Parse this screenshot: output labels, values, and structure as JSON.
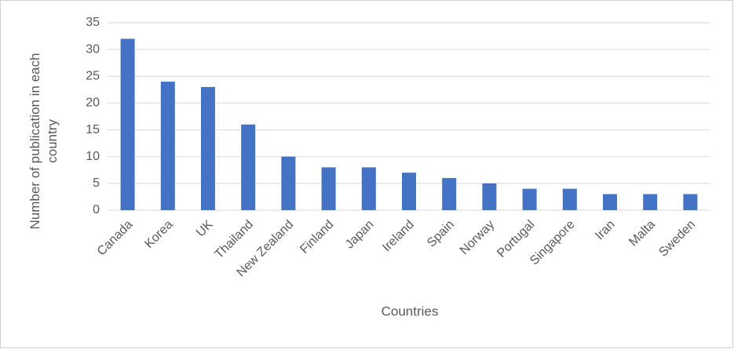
{
  "chart_data": {
    "type": "bar",
    "x_label": "Countries",
    "y_label": "Number of publication in each country",
    "categories": [
      "Canada",
      "Korea",
      "UK",
      "Thailand",
      "New Zealand",
      "Finland",
      "Japan",
      "Ireland",
      "Spain",
      "Norway",
      "Portugal",
      "Singapore",
      "Iran",
      "Malta",
      "Sweden"
    ],
    "values": [
      32,
      24,
      23,
      16,
      10,
      8,
      8,
      7,
      6,
      5,
      4,
      4,
      3,
      3,
      3
    ],
    "color": "#4472c4",
    "ylim": [
      0,
      35
    ],
    "yticks": [
      0,
      5,
      10,
      15,
      20,
      25,
      30,
      35
    ],
    "grid": true
  }
}
